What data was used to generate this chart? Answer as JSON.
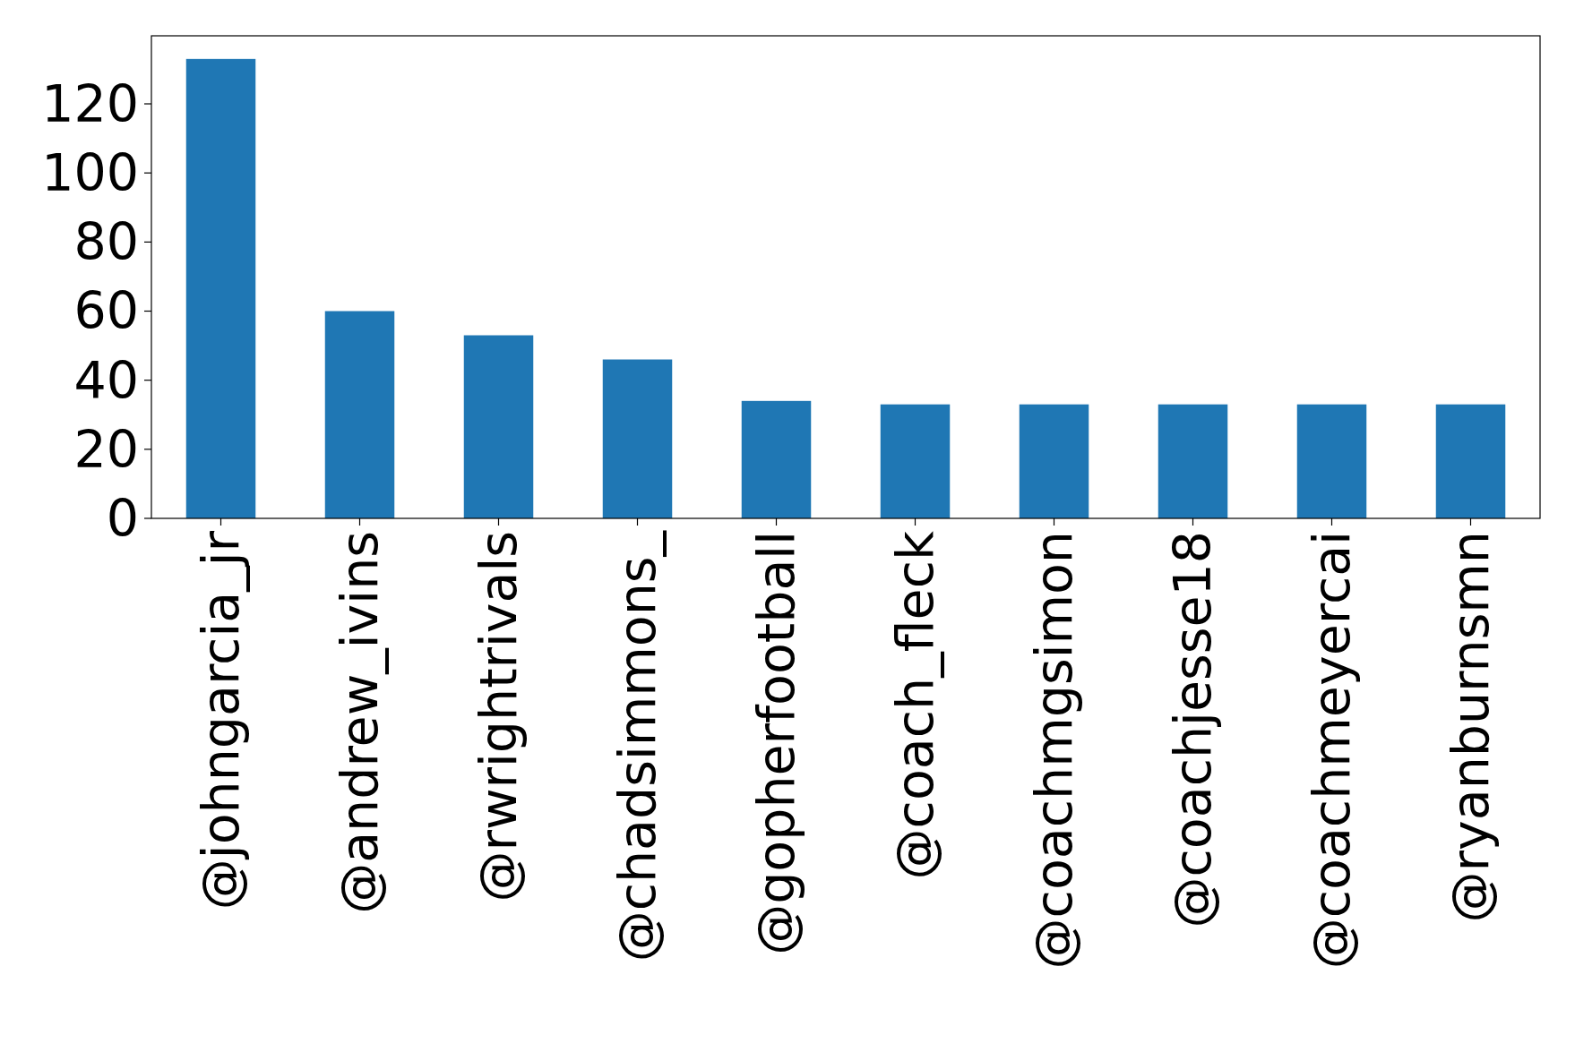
{
  "chart_data": {
    "type": "bar",
    "categories": [
      "@johngarcia_jr",
      "@andrew_ivins",
      "@rwrightrivals",
      "@chadsimmons_",
      "@gopherfootball",
      "@coach_fleck",
      "@coachmgsimon",
      "@coachjesse18",
      "@coachmeyercai",
      "@ryanburnsmn"
    ],
    "values": [
      133,
      60,
      53,
      46,
      34,
      33,
      33,
      33,
      33,
      33
    ],
    "color": "#1f77b4",
    "ylim": [
      0,
      139.7
    ],
    "yticks": [
      0,
      20,
      40,
      60,
      80,
      100,
      120
    ],
    "grid": false
  }
}
